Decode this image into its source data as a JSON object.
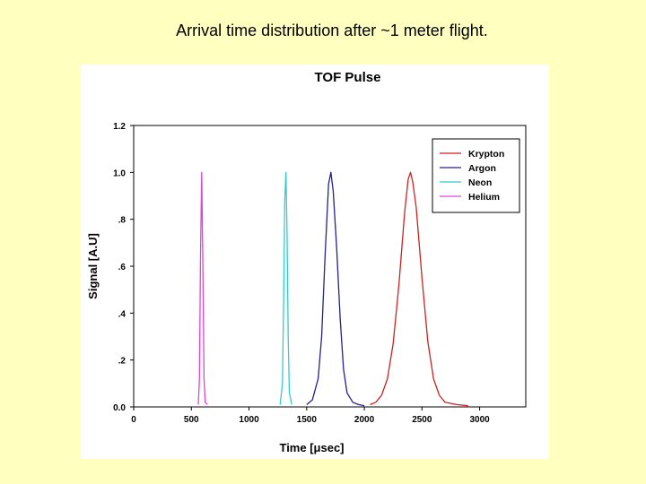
{
  "slide": {
    "title": "Arrival time distribution after ~1 meter flight."
  },
  "chart_data": {
    "type": "line",
    "title": "TOF Pulse",
    "xlabel": "Time [μsec]",
    "ylabel": "Signal [A.U]",
    "xlim": [
      0,
      3400
    ],
    "ylim": [
      0,
      1.2
    ],
    "x_ticks": [
      0,
      500,
      1000,
      1500,
      2000,
      2500,
      3000
    ],
    "x_tick_labels": [
      "0",
      "500",
      "1000",
      "1500",
      "2000",
      "2500",
      "3000"
    ],
    "y_ticks": [
      0,
      0.2,
      0.4,
      0.6,
      0.8,
      1.0,
      1.2
    ],
    "y_tick_labels": [
      "0.0",
      ".2",
      ".4",
      ".6",
      ".8",
      "1.0",
      "1.2"
    ],
    "grid": false,
    "legend_position": "top-right",
    "series": [
      {
        "name": "Krypton",
        "color": "#cc2222",
        "x": [
          2050,
          2100,
          2150,
          2200,
          2250,
          2300,
          2350,
          2380,
          2400,
          2420,
          2450,
          2500,
          2550,
          2600,
          2650,
          2700,
          2800,
          2900
        ],
        "y": [
          0.01,
          0.02,
          0.05,
          0.12,
          0.27,
          0.52,
          0.83,
          0.97,
          1.0,
          0.96,
          0.85,
          0.55,
          0.28,
          0.12,
          0.05,
          0.02,
          0.01,
          0.005
        ]
      },
      {
        "name": "Argon",
        "color": "#22228a",
        "x": [
          1500,
          1550,
          1600,
          1630,
          1660,
          1690,
          1710,
          1730,
          1760,
          1790,
          1820,
          1850,
          1900,
          1950,
          2000
        ],
        "y": [
          0.01,
          0.03,
          0.12,
          0.3,
          0.65,
          0.95,
          1.0,
          0.92,
          0.68,
          0.38,
          0.16,
          0.06,
          0.02,
          0.01,
          0.005
        ]
      },
      {
        "name": "Neon",
        "color": "#33cccc",
        "x": [
          1270,
          1290,
          1300,
          1310,
          1320,
          1330,
          1340,
          1350,
          1370
        ],
        "y": [
          0.01,
          0.1,
          0.45,
          0.88,
          1.0,
          0.75,
          0.3,
          0.06,
          0.01
        ]
      },
      {
        "name": "Helium",
        "color": "#dd44dd",
        "x": [
          560,
          570,
          580,
          590,
          600,
          610,
          620,
          640
        ],
        "y": [
          0.01,
          0.12,
          0.65,
          1.0,
          0.6,
          0.12,
          0.02,
          0.01
        ]
      }
    ]
  }
}
